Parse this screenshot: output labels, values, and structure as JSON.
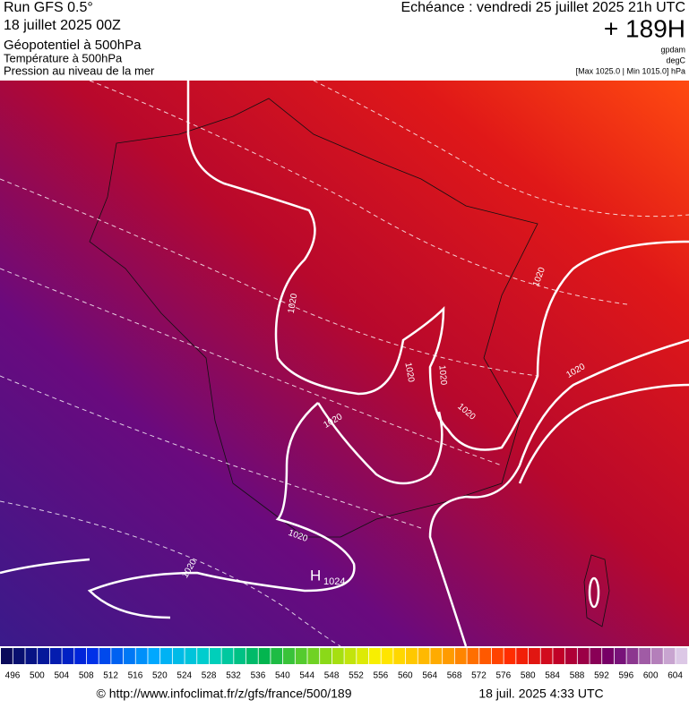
{
  "header": {
    "run": "Run GFS 0.5°",
    "date": "18 juillet 2025 00Z",
    "line1": "Géopotentiel à 500hPa",
    "line2": "Température à 500hPa",
    "line3": "Pression au niveau de la mer",
    "echeance": "Echéance : vendredi 25 juillet 2025 21h UTC",
    "offset": "+ 189H",
    "unit1": "gpdam",
    "unit2": "degC",
    "pressure_range": "[Max 1025.0 | Min 1015.0] hPa"
  },
  "map": {
    "labels": [
      "1020",
      "1020",
      "1020",
      "1020",
      "1020",
      "1020",
      "1020",
      "1020",
      "1020"
    ],
    "high": "H",
    "high_value": "1024"
  },
  "colorbar": {
    "labels": [
      496,
      500,
      504,
      508,
      512,
      516,
      520,
      524,
      528,
      532,
      536,
      540,
      544,
      548,
      552,
      556,
      560,
      564,
      568,
      572,
      576,
      580,
      584,
      588,
      592,
      596,
      600,
      604
    ]
  },
  "footer": {
    "source": "© http://www.infoclimat.fr/z/gfs/france/500/189",
    "generated": "18 juil. 2025  4:33 UTC"
  }
}
